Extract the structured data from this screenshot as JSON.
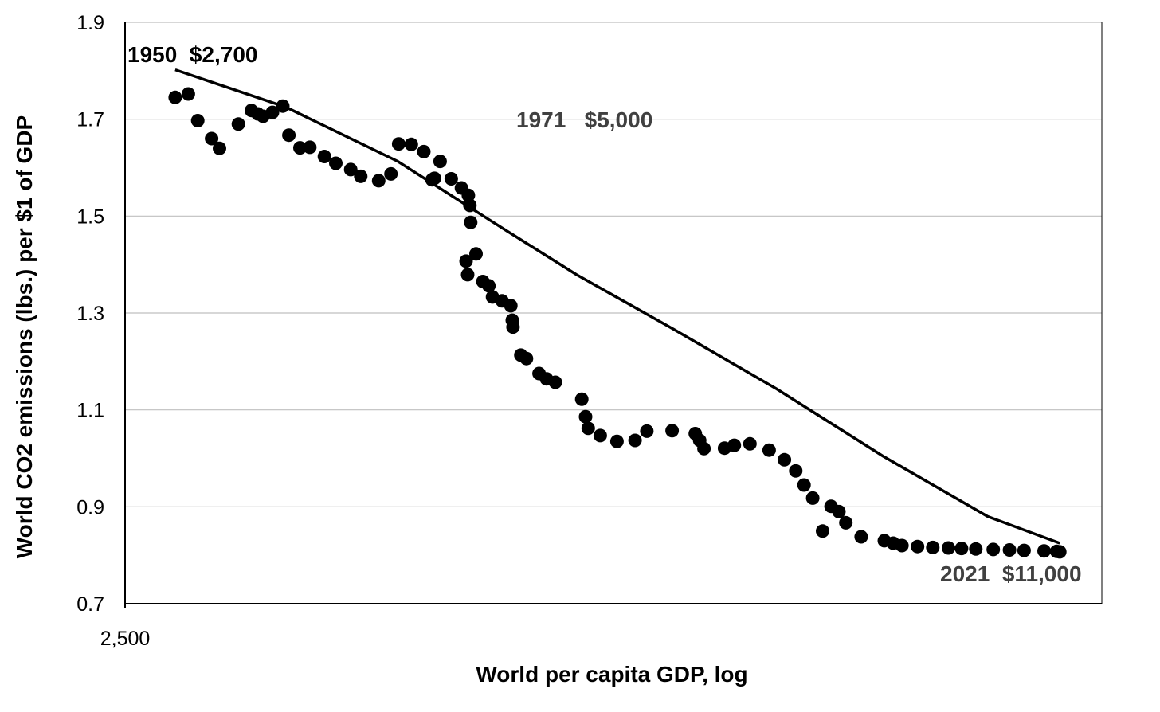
{
  "chart_data": {
    "type": "scatter",
    "title": "",
    "xlabel": "World per capita GDP, log",
    "ylabel": "World CO2 emissions (lbs.) per $1 of GDP",
    "x_scale": "log",
    "xlim": [
      2500,
      11200
    ],
    "ylim": [
      0.7,
      1.9
    ],
    "x_tick_labels": [
      "2,500"
    ],
    "y_ticks": [
      0.7,
      0.9,
      1.1,
      1.3,
      1.5,
      1.7,
      1.9
    ],
    "y_tick_labels": [
      "0.7",
      "0.9",
      "1.1",
      "1.3",
      "1.5",
      "1.7",
      "1.9"
    ],
    "grid": "horizontal",
    "legend": "none",
    "colors": {
      "points": "#000000",
      "trend": "#000000",
      "gridline": "#bfbfbf",
      "annotation_gray": "#404040"
    },
    "series": [
      {
        "kind": "points",
        "x": [
          2700,
          2755,
          2795,
          2855,
          2890,
          2975,
          3035,
          3065,
          3090,
          3135,
          3185,
          3215,
          3270,
          3320,
          3395,
          3455,
          3535,
          3590,
          3690,
          3760,
          3805,
          3880,
          3955,
          4005,
          4020,
          4055,
          4125,
          4190,
          4235,
          4245,
          4250,
          4220,
          4230,
          4285,
          4330,
          4370,
          4395,
          4460,
          4520,
          4530,
          4535,
          4590,
          4630,
          4720,
          4775,
          4840,
          5040,
          5070,
          5090,
          5185,
          5320,
          5470,
          5570,
          5790,
          6000,
          6040,
          6080,
          6275,
          6370,
          6525,
          6720,
          6880,
          7000,
          7090,
          7185,
          7295,
          7390,
          7480,
          7560,
          7740,
          8020,
          8130,
          8240,
          8440,
          8640,
          8850,
          9030,
          9230,
          9480,
          9720,
          9940,
          10250,
          10450,
          10500
        ],
        "y": [
          1.745,
          1.752,
          1.697,
          1.66,
          1.64,
          1.69,
          1.718,
          1.711,
          1.706,
          1.714,
          1.727,
          1.667,
          1.641,
          1.642,
          1.623,
          1.609,
          1.596,
          1.582,
          1.573,
          1.587,
          1.649,
          1.648,
          1.633,
          1.575,
          1.578,
          1.613,
          1.577,
          1.558,
          1.543,
          1.522,
          1.487,
          1.407,
          1.379,
          1.422,
          1.365,
          1.356,
          1.333,
          1.325,
          1.315,
          1.285,
          1.271,
          1.213,
          1.206,
          1.175,
          1.164,
          1.157,
          1.122,
          1.086,
          1.062,
          1.047,
          1.035,
          1.037,
          1.056,
          1.057,
          1.051,
          1.037,
          1.02,
          1.021,
          1.027,
          1.03,
          1.017,
          0.997,
          0.974,
          0.945,
          0.918,
          0.85,
          0.901,
          0.89,
          0.867,
          0.838,
          0.83,
          0.825,
          0.82,
          0.818,
          0.816,
          0.815,
          0.814,
          0.813,
          0.812,
          0.811,
          0.81,
          0.809,
          0.808,
          0.807
        ]
      },
      {
        "kind": "trend",
        "x": [
          2700,
          3200,
          3800,
          4400,
          5000,
          5800,
          6800,
          8000,
          9400,
          10500
        ],
        "y": [
          1.802,
          1.725,
          1.613,
          1.487,
          1.379,
          1.267,
          1.143,
          1.005,
          0.88,
          0.825
        ]
      }
    ],
    "annotations": [
      {
        "text": "1950  $2,700",
        "color": "#000000"
      },
      {
        "text": "1971   $5,000",
        "color": "#404040"
      },
      {
        "text": "2021  $11,000",
        "color": "#404040"
      }
    ]
  }
}
